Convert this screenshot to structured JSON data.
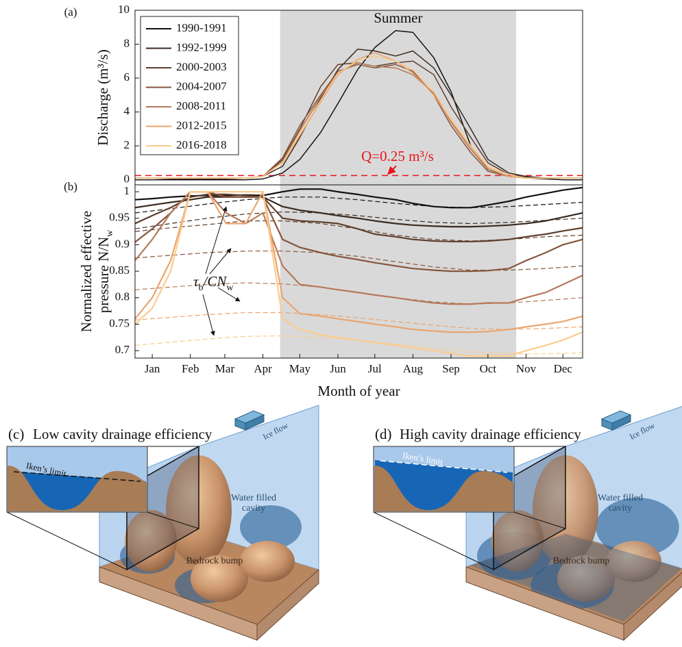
{
  "chart_data": [
    {
      "type": "line",
      "panel_label": "(a)",
      "ylabel": "Discharge (m³/s)",
      "x": [
        1,
        15,
        30,
        46,
        60,
        75,
        91,
        105,
        121,
        135,
        152,
        166,
        182,
        196,
        213,
        227,
        244,
        258,
        274,
        288,
        305,
        319,
        335,
        349,
        365
      ],
      "xlim": [
        1,
        365
      ],
      "ylim": [
        -0.3,
        10
      ],
      "yticks": [
        0,
        2,
        4,
        6,
        8,
        10
      ],
      "legend": "upper left",
      "shade": {
        "x": [
          119,
          311
        ],
        "color": "#d9d9d9",
        "label": "Summer"
      },
      "hline": {
        "y": 0.25,
        "color": "#e8141a",
        "label": "Q=0.25 m³/s"
      },
      "series": [
        {
          "name": "1990-1991",
          "color": "#111111",
          "values": [
            0,
            0,
            0,
            0,
            0,
            0,
            0,
            0.05,
            0.4,
            1.2,
            2.8,
            4.5,
            6.5,
            7.8,
            8.8,
            8.7,
            7.2,
            5.2,
            2.0,
            0.6,
            0.2,
            0.1,
            0.05,
            0,
            0
          ]
        },
        {
          "name": "1992-1999",
          "color": "#3a2a20",
          "values": [
            0.1,
            0.1,
            0.05,
            0.05,
            0.05,
            0.05,
            0.1,
            0.2,
            0.8,
            2.5,
            4.8,
            6.5,
            7.7,
            7.6,
            7.3,
            7.6,
            6.6,
            5.0,
            3.0,
            1.2,
            0.4,
            0.2,
            0.1,
            0.1,
            0.1
          ]
        },
        {
          "name": "2000-2003",
          "color": "#5e3e2c",
          "values": [
            0.1,
            0.1,
            0.1,
            0.1,
            0.1,
            0.1,
            0.1,
            0.2,
            1.2,
            3.0,
            5.5,
            6.8,
            6.9,
            6.7,
            6.9,
            7.0,
            6.2,
            4.3,
            2.5,
            1.0,
            0.3,
            0.15,
            0.1,
            0.1,
            0.1
          ]
        },
        {
          "name": "2004-2007",
          "color": "#86553b",
          "values": [
            0.1,
            0.1,
            0.1,
            0.1,
            0.1,
            0.1,
            0.1,
            0.2,
            1.3,
            3.2,
            5.0,
            6.4,
            6.8,
            6.6,
            6.8,
            6.4,
            5.0,
            3.2,
            1.6,
            0.5,
            0.2,
            0.1,
            0.1,
            0.1,
            0.1
          ]
        },
        {
          "name": "2008-2011",
          "color": "#b5795a",
          "values": [
            0.1,
            0.1,
            0.1,
            0.1,
            0.1,
            0.1,
            0.1,
            0.2,
            1.1,
            2.9,
            4.9,
            6.3,
            6.9,
            6.7,
            6.6,
            6.2,
            5.1,
            3.4,
            1.8,
            0.6,
            0.2,
            0.1,
            0.1,
            0.1,
            0.1
          ]
        },
        {
          "name": "2012-2015",
          "color": "#eba46d",
          "values": [
            0.1,
            0.1,
            0.1,
            0.1,
            0.1,
            0.1,
            0.1,
            0.2,
            1.0,
            2.6,
            4.6,
            6.2,
            7.1,
            7.5,
            7.0,
            6.3,
            5.0,
            3.5,
            1.9,
            0.7,
            0.2,
            0.1,
            0.1,
            0.1,
            0.1
          ]
        },
        {
          "name": "2016-2018",
          "color": "#fbcb8c",
          "values": [
            0.1,
            0.1,
            0.1,
            0.1,
            0.1,
            0.1,
            0.1,
            0.2,
            1.0,
            2.7,
            4.7,
            6.3,
            7.0,
            7.3,
            7.0,
            6.5,
            5.2,
            3.6,
            2.0,
            0.8,
            0.3,
            0.1,
            0.1,
            0.1,
            0.1
          ]
        }
      ]
    },
    {
      "type": "line",
      "panel_label": "(b)",
      "ylabel": {
        "lines": [
          "Normalized effective",
          "pressure N/N"
        ],
        "subscript": "w"
      },
      "xlabel": "Month of year",
      "x": [
        1,
        15,
        30,
        46,
        60,
        75,
        91,
        105,
        121,
        135,
        152,
        166,
        182,
        196,
        213,
        227,
        244,
        258,
        274,
        288,
        305,
        319,
        335,
        349,
        365
      ],
      "xlim": [
        1,
        365
      ],
      "ylim": [
        0.686,
        1.013
      ],
      "yticks": [
        0.7,
        0.75,
        0.8,
        0.85,
        0.9,
        0.95,
        1
      ],
      "xticks": [
        {
          "value": 15,
          "label": "Jan"
        },
        {
          "value": 46,
          "label": "Feb"
        },
        {
          "value": 74,
          "label": "Mar"
        },
        {
          "value": 105,
          "label": "Apr"
        },
        {
          "value": 135,
          "label": "May"
        },
        {
          "value": 166,
          "label": "Jun"
        },
        {
          "value": 196,
          "label": "Jul"
        },
        {
          "value": 227,
          "label": "Aug"
        },
        {
          "value": 258,
          "label": "Sep"
        },
        {
          "value": 288,
          "label": "Oct"
        },
        {
          "value": 319,
          "label": "Nov"
        },
        {
          "value": 349,
          "label": "Dec"
        }
      ],
      "shade": {
        "x": [
          119,
          311
        ],
        "color": "#d9d9d9"
      },
      "series": [
        {
          "color": "#111111",
          "values": [
            0.985,
            0.987,
            0.99,
            0.992,
            0.993,
            0.993,
            0.994,
            0.993,
            1.0,
            1.005,
            1.005,
            1.0,
            0.995,
            0.99,
            0.985,
            0.978,
            0.972,
            0.97,
            0.97,
            0.975,
            0.982,
            0.99,
            0.997,
            1.003,
            1.008
          ]
        },
        {
          "color": "#3a2a20",
          "values": [
            0.97,
            0.975,
            0.98,
            0.985,
            0.99,
            0.99,
            0.99,
            0.99,
            0.972,
            0.965,
            0.96,
            0.955,
            0.95,
            0.945,
            0.94,
            0.937,
            0.935,
            0.934,
            0.934,
            0.935,
            0.937,
            0.94,
            0.945,
            0.952,
            0.96
          ]
        },
        {
          "color": "#5e3e2c",
          "values": [
            0.94,
            0.955,
            0.97,
            0.99,
            0.995,
            0.995,
            0.993,
            0.99,
            0.95,
            0.945,
            0.943,
            0.94,
            0.93,
            0.92,
            0.915,
            0.91,
            0.907,
            0.906,
            0.906,
            0.907,
            0.91,
            0.915,
            0.92,
            0.926,
            0.932
          ]
        },
        {
          "color": "#86553b",
          "values": [
            0.905,
            0.93,
            0.96,
            1.0,
            1.0,
            0.99,
            0.99,
            0.99,
            0.91,
            0.895,
            0.885,
            0.878,
            0.872,
            0.866,
            0.86,
            0.855,
            0.852,
            0.85,
            0.85,
            0.851,
            0.855,
            0.87,
            0.885,
            0.9,
            0.91
          ]
        },
        {
          "color": "#b5795a",
          "values": [
            0.87,
            0.91,
            0.96,
            1.0,
            1.0,
            0.96,
            0.94,
            0.96,
            0.86,
            0.825,
            0.82,
            0.815,
            0.81,
            0.805,
            0.8,
            0.795,
            0.79,
            0.788,
            0.788,
            0.79,
            0.79,
            0.8,
            0.81,
            0.825,
            0.842
          ]
        },
        {
          "color": "#eba46d",
          "values": [
            0.76,
            0.8,
            0.87,
            1.0,
            1.0,
            0.94,
            0.94,
            1.0,
            0.8,
            0.77,
            0.765,
            0.76,
            0.755,
            0.75,
            0.745,
            0.74,
            0.737,
            0.735,
            0.735,
            0.736,
            0.74,
            0.745,
            0.75,
            0.755,
            0.765
          ]
        },
        {
          "color": "#fbcb8c",
          "values": [
            0.75,
            0.78,
            0.85,
            1.0,
            1.0,
            1.0,
            1.0,
            1.0,
            0.76,
            0.74,
            0.73,
            0.725,
            0.72,
            0.715,
            0.71,
            0.705,
            0.7,
            0.695,
            0.69,
            0.69,
            0.69,
            0.7,
            0.71,
            0.72,
            0.735
          ]
        }
      ],
      "dashed": {
        "x": [
          1,
          30,
          60,
          91,
          121,
          152,
          182,
          213,
          244,
          274,
          305,
          335,
          365
        ],
        "series": [
          {
            "color": "#111111",
            "values": [
              0.96,
              0.968,
              0.977,
              0.985,
              0.99,
              0.99,
              0.985,
              0.978,
              0.972,
              0.97,
              0.972,
              0.976,
              0.98
            ]
          },
          {
            "color": "#3a2a20",
            "values": [
              0.93,
              0.94,
              0.95,
              0.958,
              0.962,
              0.96,
              0.955,
              0.948,
              0.942,
              0.94,
              0.942,
              0.946,
              0.95
            ]
          },
          {
            "color": "#5e3e2c",
            "values": [
              0.925,
              0.932,
              0.938,
              0.945,
              0.945,
              0.94,
              0.93,
              0.918,
              0.91,
              0.907,
              0.91,
              0.915,
              0.918
            ]
          },
          {
            "color": "#86553b",
            "values": [
              0.875,
              0.88,
              0.885,
              0.888,
              0.888,
              0.885,
              0.878,
              0.868,
              0.858,
              0.852,
              0.852,
              0.855,
              0.86
            ]
          },
          {
            "color": "#b5795a",
            "values": [
              0.815,
              0.82,
              0.825,
              0.828,
              0.826,
              0.82,
              0.81,
              0.8,
              0.792,
              0.788,
              0.79,
              0.795,
              0.8
            ]
          },
          {
            "color": "#eba46d",
            "values": [
              0.758,
              0.763,
              0.768,
              0.772,
              0.772,
              0.768,
              0.762,
              0.755,
              0.748,
              0.742,
              0.74,
              0.742,
              0.745
            ]
          },
          {
            "color": "#fbcb8c",
            "values": [
              0.71,
              0.716,
              0.722,
              0.727,
              0.728,
              0.725,
              0.72,
              0.712,
              0.705,
              0.698,
              0.694,
              0.694,
              0.696
            ]
          }
        ]
      },
      "annotation": {
        "parts": [
          "τ",
          "b",
          "/CN",
          "w"
        ]
      }
    }
  ],
  "panels": [
    {
      "label": "(c)",
      "title": "Low cavity drainage efficiency",
      "inset_label": "Iken’s limit",
      "flow_label": "Ice flow",
      "cavity_label": [
        "Water filled",
        "cavity"
      ],
      "bump_label": "Bedrock bump"
    },
    {
      "label": "(d)",
      "title": "High cavity drainage efficiency",
      "inset_label": "Iken’s limit",
      "flow_label": "Ice flow",
      "cavity_label": [
        "Water filled",
        "cavity"
      ],
      "bump_label": "Bedrock bump"
    }
  ]
}
